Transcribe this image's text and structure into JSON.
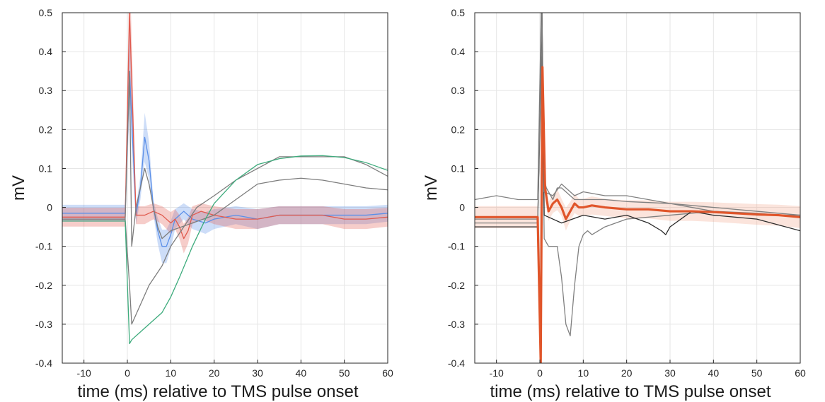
{
  "chart_data": [
    {
      "type": "line",
      "xlabel": "time (ms) relative to TMS pulse onset",
      "ylabel": "mV",
      "xlim": [
        -15,
        60
      ],
      "ylim": [
        -0.4,
        0.5
      ],
      "xticks": [
        -10,
        0,
        10,
        20,
        30,
        40,
        50,
        60
      ],
      "yticks": [
        -0.4,
        -0.3,
        -0.2,
        -0.1,
        0,
        0.1,
        0.2,
        0.3,
        0.4,
        0.5
      ],
      "grid": true,
      "legend": "none",
      "colors": {
        "blue": "#5b8fe8",
        "red": "#e05a4e",
        "green": "#3dab7c",
        "gray": "#7d7d7d"
      },
      "series": [
        {
          "color": "blue",
          "band": true,
          "x": [
            -15,
            -5,
            -0.5,
            0.5,
            2,
            3,
            4,
            5,
            6,
            7,
            8,
            9,
            10,
            11,
            13,
            15,
            18,
            20,
            25,
            30,
            35,
            40,
            45,
            50,
            55,
            60
          ],
          "y": [
            -0.015,
            -0.015,
            -0.015,
            0.35,
            -0.02,
            0.05,
            0.18,
            0.12,
            0.0,
            -0.06,
            -0.1,
            -0.1,
            -0.07,
            -0.03,
            -0.01,
            -0.03,
            -0.04,
            -0.03,
            -0.02,
            -0.03,
            -0.02,
            -0.02,
            -0.02,
            -0.02,
            -0.02,
            -0.015
          ]
        },
        {
          "color": "red",
          "band": true,
          "x": [
            -15,
            -5,
            -0.5,
            0.5,
            2,
            4,
            6,
            8,
            10,
            11,
            12,
            13,
            14,
            15,
            17,
            20,
            25,
            30,
            35,
            40,
            45,
            50,
            55,
            60
          ],
          "y": [
            -0.025,
            -0.025,
            -0.025,
            0.5,
            -0.02,
            -0.02,
            -0.01,
            -0.02,
            -0.04,
            -0.03,
            -0.05,
            -0.08,
            -0.06,
            -0.02,
            -0.01,
            -0.02,
            -0.03,
            -0.03,
            -0.02,
            -0.02,
            -0.02,
            -0.03,
            -0.03,
            -0.025
          ]
        },
        {
          "color": "gray",
          "band": false,
          "x": [
            -15,
            -5,
            -0.5,
            0.5,
            1,
            2,
            3,
            4,
            5,
            6,
            7,
            8,
            10,
            15,
            20,
            25,
            30,
            35,
            40,
            45,
            50,
            55,
            60
          ],
          "y": [
            -0.03,
            -0.03,
            -0.03,
            0.35,
            -0.1,
            0.0,
            0.05,
            0.1,
            0.06,
            0.0,
            -0.05,
            -0.08,
            -0.06,
            -0.04,
            -0.02,
            0.02,
            0.06,
            0.07,
            0.075,
            0.07,
            0.06,
            0.05,
            0.045
          ]
        },
        {
          "color": "gray",
          "band": false,
          "x": [
            -15,
            -0.5,
            0.5,
            1,
            3,
            5,
            8,
            10,
            13,
            16,
            20,
            25,
            30,
            35,
            40,
            45,
            50,
            55,
            60
          ],
          "y": [
            -0.03,
            -0.03,
            -0.2,
            -0.3,
            -0.25,
            -0.2,
            -0.15,
            -0.1,
            -0.05,
            0.0,
            0.03,
            0.07,
            0.1,
            0.13,
            0.13,
            0.13,
            0.13,
            0.11,
            0.08
          ]
        },
        {
          "color": "green",
          "band": false,
          "x": [
            -15,
            -0.5,
            0.5,
            1,
            3,
            5,
            8,
            10,
            12,
            15,
            18,
            20,
            25,
            30,
            35,
            40,
            45,
            50,
            55,
            60
          ],
          "y": [
            -0.035,
            -0.035,
            -0.35,
            -0.34,
            -0.32,
            -0.3,
            -0.27,
            -0.23,
            -0.18,
            -0.1,
            -0.03,
            0.01,
            0.07,
            0.11,
            0.125,
            0.132,
            0.133,
            0.128,
            0.115,
            0.095
          ]
        }
      ]
    },
    {
      "type": "line",
      "xlabel": "time (ms) relative to TMS pulse onset",
      "ylabel": "mV",
      "xlim": [
        -15,
        60
      ],
      "ylim": [
        -0.4,
        0.5
      ],
      "xticks": [
        -10,
        0,
        10,
        20,
        30,
        40,
        50,
        60
      ],
      "yticks": [
        -0.4,
        -0.3,
        -0.2,
        -0.1,
        0,
        0.1,
        0.2,
        0.3,
        0.4,
        0.5
      ],
      "grid": true,
      "legend": "none",
      "colors": {
        "orange": "#e0552a",
        "band": "#f2a58a",
        "gray": "#808080",
        "dark": "#2a2a2a"
      },
      "series": [
        {
          "color": "gray",
          "band": false,
          "x": [
            -15,
            -10,
            -5,
            -0.5,
            0.3,
            0.8,
            1.5,
            3,
            4,
            5,
            6,
            7,
            8,
            10,
            15,
            20,
            30,
            40,
            50,
            60
          ],
          "y": [
            0.02,
            0.03,
            0.02,
            0.02,
            0.5,
            0.08,
            0.05,
            0.02,
            0.05,
            0.05,
            0.04,
            0.03,
            0.02,
            0.02,
            0.02,
            0.015,
            0.01,
            0.0,
            -0.01,
            -0.02
          ]
        },
        {
          "color": "gray",
          "band": false,
          "x": [
            -15,
            -0.5,
            0.5,
            1,
            2,
            3,
            4,
            5,
            6,
            7,
            8,
            9,
            10,
            11,
            12,
            15,
            20,
            30,
            40,
            50,
            60
          ],
          "y": [
            -0.03,
            -0.03,
            0.4,
            -0.08,
            -0.1,
            -0.1,
            -0.1,
            -0.18,
            -0.3,
            -0.33,
            -0.2,
            -0.1,
            -0.07,
            -0.06,
            -0.07,
            -0.05,
            -0.03,
            -0.02,
            -0.01,
            -0.02,
            -0.02
          ]
        },
        {
          "color": "dark",
          "band": false,
          "x": [
            -15,
            -0.5,
            0.5,
            1,
            3,
            5,
            10,
            15,
            20,
            25,
            28,
            29,
            30,
            35,
            40,
            50,
            60
          ],
          "y": [
            -0.05,
            -0.05,
            0.5,
            -0.02,
            -0.03,
            -0.04,
            -0.02,
            -0.03,
            -0.02,
            -0.04,
            -0.06,
            -0.07,
            -0.05,
            -0.01,
            -0.02,
            -0.03,
            -0.06
          ]
        },
        {
          "color": "gray",
          "band": false,
          "x": [
            -15,
            -0.5,
            0.5,
            1,
            3,
            5,
            8,
            10,
            15,
            20,
            25,
            30,
            35,
            40,
            50,
            60
          ],
          "y": [
            -0.04,
            -0.04,
            0.5,
            0.04,
            0.03,
            0.06,
            0.03,
            0.04,
            0.03,
            0.03,
            0.02,
            0.01,
            0.0,
            -0.01,
            -0.015,
            -0.025
          ]
        },
        {
          "color": "orange",
          "band": true,
          "bold": true,
          "x": [
            -15,
            -5,
            -0.5,
            0.2,
            0.6,
            1.2,
            2,
            3,
            4,
            5,
            6,
            7,
            8,
            9,
            10,
            12,
            15,
            20,
            25,
            30,
            35,
            40,
            45,
            50,
            55,
            60
          ],
          "y": [
            -0.025,
            -0.025,
            -0.025,
            -0.4,
            0.36,
            0.05,
            -0.01,
            0.01,
            0.02,
            0.0,
            -0.03,
            -0.01,
            0.01,
            0.0,
            0.0,
            0.005,
            0.0,
            -0.005,
            -0.005,
            -0.01,
            -0.01,
            -0.012,
            -0.015,
            -0.018,
            -0.02,
            -0.025
          ]
        }
      ]
    }
  ]
}
